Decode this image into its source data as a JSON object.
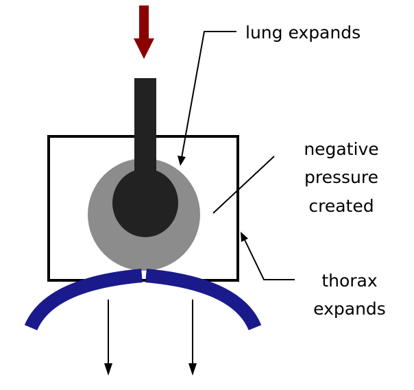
{
  "labels": {
    "lung_expands": "lung expands",
    "negative_line1": "negative",
    "negative_line2": "pressure",
    "negative_line3": "created",
    "thorax_line1": "thorax",
    "thorax_line2": "expands"
  },
  "colors": {
    "force_arrow": "#8b0000",
    "trachea": "#222222",
    "lung_outer": "#8c8c8c",
    "lung_inner": "#222222",
    "diaphragm": "#1a1a8c",
    "outline": "#000000",
    "background": "#ffffff"
  }
}
